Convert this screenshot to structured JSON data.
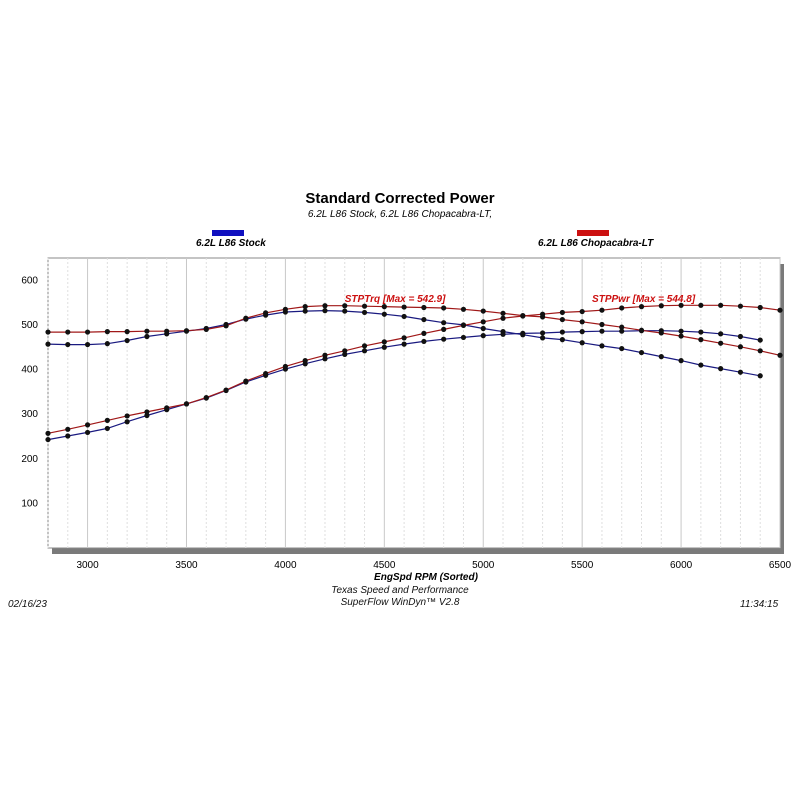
{
  "chart_data": {
    "type": "line",
    "title": "Standard Corrected Power",
    "subtitle": "6.2L L86 Stock, 6.2L L86 Chopacabra-LT,",
    "xlabel": "EngSpd  RPM   (Sorted)",
    "ylabel": "",
    "xlim": [
      2800,
      6500
    ],
    "ylim": [
      0,
      650
    ],
    "x_ticks": [
      3000,
      3500,
      4000,
      4500,
      5000,
      5500,
      6000,
      6500
    ],
    "y_ticks": [
      100,
      200,
      300,
      400,
      500,
      600
    ],
    "grid": true,
    "legend": [
      {
        "name": "6.2L L86 Stock",
        "color": "#1010c0"
      },
      {
        "name": "6.2L L86 Chopacabra-LT",
        "color": "#cc1010"
      }
    ],
    "annotations": [
      {
        "text": "STPTrq [Max = 542.9]",
        "x": 4300,
        "y": 551,
        "color": "#cc1010"
      },
      {
        "text": "STPPwr [Max = 544.8]",
        "x": 5550,
        "y": 551,
        "color": "#cc1010"
      }
    ],
    "series": [
      {
        "name": "Stock STPTrq",
        "color": "#1a1a80",
        "x": [
          2800,
          2900,
          3000,
          3100,
          3200,
          3300,
          3400,
          3500,
          3600,
          3700,
          3800,
          3900,
          4000,
          4100,
          4200,
          4300,
          4400,
          4500,
          4600,
          4700,
          4800,
          4900,
          5000,
          5100,
          5200,
          5300,
          5400,
          5500,
          5600,
          5700,
          5800,
          5900,
          6000,
          6100,
          6200,
          6300,
          6400
        ],
        "values": [
          457,
          456,
          456,
          458,
          465,
          474,
          480,
          486,
          492,
          501,
          513,
          522,
          529,
          531,
          532,
          531,
          528,
          524,
          519,
          512,
          505,
          500,
          492,
          485,
          478,
          471,
          467,
          460,
          453,
          447,
          438,
          429,
          420,
          410,
          402,
          394,
          386
        ]
      },
      {
        "name": "Stock STPPwr",
        "color": "#1a1a80",
        "x": [
          2800,
          2900,
          3000,
          3100,
          3200,
          3300,
          3400,
          3500,
          3600,
          3700,
          3800,
          3900,
          4000,
          4100,
          4200,
          4300,
          4400,
          4500,
          4600,
          4700,
          4800,
          4900,
          5000,
          5100,
          5200,
          5300,
          5400,
          5500,
          5600,
          5700,
          5800,
          5900,
          6000,
          6100,
          6200,
          6300,
          6400
        ],
        "values": [
          243,
          251,
          259,
          268,
          283,
          297,
          310,
          323,
          336,
          353,
          372,
          387,
          401,
          413,
          424,
          434,
          442,
          450,
          457,
          463,
          468,
          472,
          476,
          479,
          481,
          482,
          484,
          485,
          486,
          486,
          487,
          487,
          486,
          484,
          480,
          474,
          466
        ]
      },
      {
        "name": "Chopacabra-LT STPTrq",
        "color": "#a01818",
        "x": [
          2800,
          2900,
          3000,
          3100,
          3200,
          3300,
          3400,
          3500,
          3600,
          3700,
          3800,
          3900,
          4000,
          4100,
          4200,
          4300,
          4400,
          4500,
          4600,
          4700,
          4800,
          4900,
          5000,
          5100,
          5200,
          5300,
          5400,
          5500,
          5600,
          5700,
          5800,
          5900,
          6000,
          6100,
          6200,
          6300,
          6400,
          6500
        ],
        "values": [
          484,
          484,
          484,
          485,
          485,
          486,
          486,
          487,
          490,
          498,
          515,
          527,
          535,
          541,
          543,
          543,
          542,
          541,
          540,
          539,
          538,
          535,
          531,
          526,
          521,
          518,
          512,
          507,
          501,
          495,
          488,
          482,
          475,
          467,
          459,
          451,
          442,
          432
        ]
      },
      {
        "name": "Chopacabra-LT STPPwr",
        "color": "#a01818",
        "x": [
          2800,
          2900,
          3000,
          3100,
          3200,
          3300,
          3400,
          3500,
          3600,
          3700,
          3800,
          3900,
          4000,
          4100,
          4200,
          4300,
          4400,
          4500,
          4600,
          4700,
          4800,
          4900,
          5000,
          5100,
          5200,
          5300,
          5400,
          5500,
          5600,
          5700,
          5800,
          5900,
          6000,
          6100,
          6200,
          6300,
          6400,
          6500
        ],
        "values": [
          257,
          266,
          276,
          286,
          296,
          305,
          314,
          323,
          337,
          354,
          374,
          391,
          407,
          420,
          432,
          442,
          453,
          462,
          471,
          481,
          490,
          499,
          507,
          515,
          520,
          524,
          528,
          530,
          533,
          538,
          541,
          543,
          544,
          544,
          544,
          542,
          539,
          533
        ]
      }
    ]
  },
  "footer": {
    "date": "02/16/23",
    "company": "Texas Speed and Performance",
    "software": "SuperFlow WinDyn™  V2.8",
    "time": "11:34:15"
  }
}
